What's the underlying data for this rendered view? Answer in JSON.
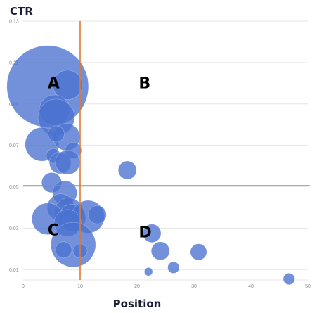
{
  "chart_data": {
    "type": "scatter",
    "subtype": "bubble",
    "title": "",
    "xlabel": "Position",
    "ylabel": "CTR",
    "xlim": [
      0,
      50
    ],
    "ylim": [
      0.005,
      0.13
    ],
    "x_ticks": [
      0,
      10,
      20,
      30,
      40,
      50
    ],
    "y_ticks": [
      0.01,
      0.03,
      0.05,
      0.07,
      0.09,
      0.11,
      0.13
    ],
    "grid": "horizontal",
    "bubble_color": "#4a72d0",
    "reference_lines": {
      "x": 10,
      "y": 0.0505,
      "color": "#e07a2e"
    },
    "quadrant_labels": [
      {
        "text": "A",
        "x": 4.3,
        "y": 0.0975
      },
      {
        "text": "B",
        "x": 20.3,
        "y": 0.0975
      },
      {
        "text": "C",
        "x": 4.3,
        "y": 0.0265
      },
      {
        "text": "D",
        "x": 20.3,
        "y": 0.0255
      },
      {
        "text": "",
        "x": 0,
        "y": 0
      }
    ],
    "points": [
      {
        "x": 4.3,
        "y": 0.0985,
        "size": 100
      },
      {
        "x": 7.8,
        "y": 0.0992,
        "size": 13
      },
      {
        "x": 5.5,
        "y": 0.087,
        "size": 14
      },
      {
        "x": 5.8,
        "y": 0.0835,
        "size": 20
      },
      {
        "x": 3.3,
        "y": 0.0705,
        "size": 17
      },
      {
        "x": 7.6,
        "y": 0.074,
        "size": 11
      },
      {
        "x": 5.8,
        "y": 0.0755,
        "size": 4
      },
      {
        "x": 8.8,
        "y": 0.0675,
        "size": 4
      },
      {
        "x": 5.3,
        "y": 0.065,
        "size": 3
      },
      {
        "x": 6.5,
        "y": 0.0615,
        "size": 7
      },
      {
        "x": 7.8,
        "y": 0.0618,
        "size": 9
      },
      {
        "x": 18.3,
        "y": 0.058,
        "size": 5
      },
      {
        "x": 5.0,
        "y": 0.052,
        "size": 6
      },
      {
        "x": 7.3,
        "y": 0.047,
        "size": 9
      },
      {
        "x": 6.6,
        "y": 0.04,
        "size": 11
      },
      {
        "x": 8.0,
        "y": 0.0375,
        "size": 13
      },
      {
        "x": 8.6,
        "y": 0.035,
        "size": 11
      },
      {
        "x": 11.4,
        "y": 0.0355,
        "size": 16
      },
      {
        "x": 13.0,
        "y": 0.0365,
        "size": 5
      },
      {
        "x": 4.3,
        "y": 0.0345,
        "size": 15
      },
      {
        "x": 7.8,
        "y": 0.0325,
        "size": 11
      },
      {
        "x": 8.8,
        "y": 0.022,
        "size": 30
      },
      {
        "x": 7.1,
        "y": 0.0195,
        "size": 4
      },
      {
        "x": 10.0,
        "y": 0.019,
        "size": 3
      },
      {
        "x": 22.6,
        "y": 0.0275,
        "size": 5
      },
      {
        "x": 24.1,
        "y": 0.019,
        "size": 5
      },
      {
        "x": 30.8,
        "y": 0.0185,
        "size": 4
      },
      {
        "x": 26.4,
        "y": 0.011,
        "size": 2
      },
      {
        "x": 22.0,
        "y": 0.009,
        "size": 1
      },
      {
        "x": 46.7,
        "y": 0.0055,
        "size": 2
      }
    ]
  }
}
